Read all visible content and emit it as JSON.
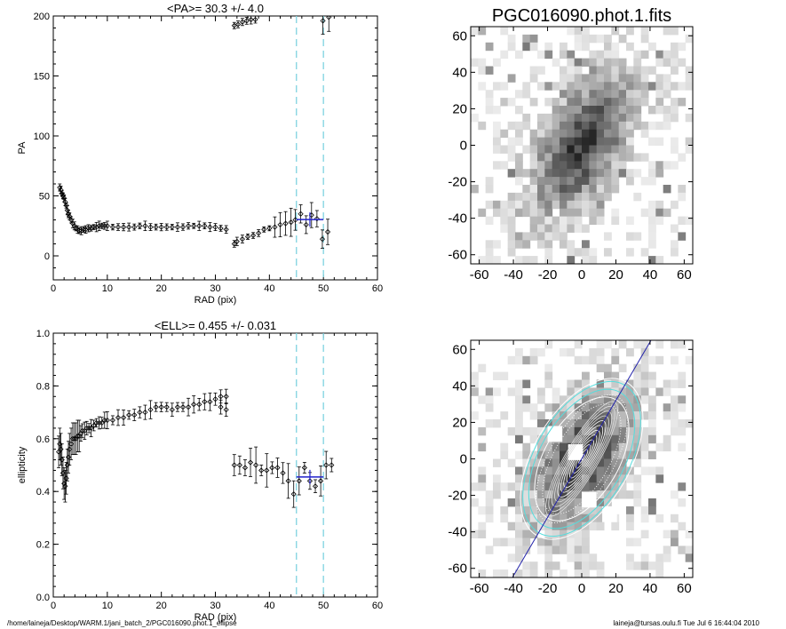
{
  "colors": {
    "axis": "#000000",
    "data_points": "#000000",
    "average_marker": "#2222cc",
    "reference_lines": "#7fd3e0",
    "image_ellipse_cyan": "#55dddd",
    "image_ellipse_white": "#ffffff",
    "major_axis_line": "#2222aa"
  },
  "footer": {
    "left": "/home/laineja/Desktop/WARM.1/jani_batch_2/PGC016090.phot.1_ellipse",
    "right": "laineja@tursas.oulu.fi  Tue Jul  6 16:44:04 2010"
  },
  "chart_data": [
    {
      "id": "pa",
      "type": "scatter",
      "title": "<PA>=  30.3 +/-   4.0",
      "xlabel": "RAD (pix)",
      "ylabel": "PA",
      "xlim": [
        0,
        60
      ],
      "ylim": [
        -20,
        200
      ],
      "xticks": [
        0,
        10,
        20,
        30,
        40,
        50,
        60
      ],
      "yticks": [
        0,
        50,
        100,
        150,
        200
      ],
      "reference_lines_x": [
        45,
        50
      ],
      "series": [
        {
          "x": [
            1.2,
            1.4,
            1.6,
            1.8,
            2.0,
            2.2,
            2.4,
            2.6,
            2.8,
            3.0,
            3.3,
            3.6,
            3.9,
            4.2,
            4.5,
            4.8,
            5.2,
            5.6,
            6.0,
            6.5,
            7.0,
            7.5,
            8,
            8.5,
            9,
            9.5,
            10,
            11,
            12,
            13,
            14,
            15,
            16,
            17,
            18,
            19,
            20,
            21,
            22,
            23,
            24,
            25,
            26,
            27,
            28,
            29,
            30,
            31,
            32,
            33.5,
            34,
            35,
            36,
            37,
            38,
            39,
            40,
            41,
            42,
            43,
            44
          ],
          "y": [
            57,
            55,
            52,
            50,
            48,
            45,
            42,
            38,
            35,
            33,
            30,
            27,
            25,
            23,
            22,
            21,
            21,
            22,
            22,
            23,
            23,
            24,
            24,
            25,
            25,
            25,
            25,
            24,
            24,
            24,
            24,
            24,
            25,
            25,
            24,
            24,
            24,
            24,
            24,
            24,
            24,
            25,
            25,
            25,
            25,
            24,
            24,
            23,
            22,
            10,
            12,
            14,
            16,
            17,
            19,
            22,
            23,
            24,
            26,
            27,
            28
          ]
        },
        {
          "x": [
            33.5,
            34.2,
            35.0,
            35.8,
            36.6,
            37.4
          ],
          "y": [
            192,
            193,
            195,
            196,
            197,
            197
          ]
        },
        {
          "x": [
            44.8,
            45.8,
            46.8,
            47.8,
            48.8,
            49.8,
            50.8
          ],
          "y": [
            30,
            35,
            26,
            34,
            31,
            14,
            20
          ]
        },
        {
          "x": [
            49.9,
            51.0
          ],
          "y": [
            196,
            199
          ]
        }
      ],
      "mean_marker": {
        "x": [
          45,
          50
        ],
        "y": 30.3
      }
    },
    {
      "id": "ell",
      "type": "scatter",
      "title": "<ELL>= 0.455 +/-  0.031",
      "xlabel": "RAD (pix)",
      "ylabel": "ellipticity",
      "xlim": [
        0,
        60
      ],
      "ylim": [
        0,
        1
      ],
      "xticks": [
        0,
        10,
        20,
        30,
        40,
        50,
        60
      ],
      "yticks": [
        0.0,
        0.2,
        0.4,
        0.6,
        0.8,
        1.0
      ],
      "reference_lines_x": [
        45,
        50
      ],
      "series": [
        {
          "x": [
            1.0,
            1.2,
            1.4,
            1.6,
            1.8,
            2.0,
            2.2,
            2.4,
            2.6,
            2.8,
            3.0,
            3.3,
            3.6,
            3.9,
            4.2,
            4.5,
            4.8,
            5.1,
            5.4,
            5.8,
            6.2,
            6.6,
            7,
            7.5,
            8,
            8.5,
            9,
            9.5,
            10,
            11,
            12,
            13,
            14,
            15,
            16,
            17,
            18,
            19,
            20,
            21,
            22,
            23,
            24,
            25,
            26,
            27,
            28,
            29,
            30,
            31,
            32
          ],
          "y": [
            0.55,
            0.58,
            0.56,
            0.52,
            0.47,
            0.43,
            0.42,
            0.45,
            0.5,
            0.53,
            0.56,
            0.58,
            0.6,
            0.6,
            0.6,
            0.61,
            0.61,
            0.62,
            0.63,
            0.63,
            0.64,
            0.64,
            0.64,
            0.65,
            0.66,
            0.66,
            0.66,
            0.67,
            0.67,
            0.67,
            0.68,
            0.68,
            0.69,
            0.69,
            0.7,
            0.7,
            0.71,
            0.72,
            0.72,
            0.72,
            0.71,
            0.72,
            0.72,
            0.72,
            0.73,
            0.73,
            0.74,
            0.74,
            0.75,
            0.76,
            0.76
          ]
        },
        {
          "x": [
            31.0,
            32.0
          ],
          "y": [
            0.72,
            0.71
          ]
        },
        {
          "x": [
            33.5,
            34.5,
            35.5,
            36.5,
            37.5,
            38.5,
            39.5,
            40.5,
            41.5,
            42.5,
            43.5,
            44.5,
            45.5,
            46.5,
            47.5,
            48.5,
            49.5,
            50.5,
            51.5
          ],
          "y": [
            0.5,
            0.5,
            0.49,
            0.51,
            0.5,
            0.48,
            0.48,
            0.49,
            0.49,
            0.47,
            0.44,
            0.39,
            0.44,
            0.49,
            0.44,
            0.42,
            0.44,
            0.5,
            0.5
          ]
        }
      ],
      "mean_marker": {
        "x": [
          45,
          50
        ],
        "y": 0.455
      }
    },
    {
      "id": "img1",
      "type": "heatmap",
      "title": "PGC016090.phot.1.fits",
      "xlim": [
        -65,
        65
      ],
      "ylim": [
        -65,
        65
      ],
      "xticks": [
        -60,
        -40,
        -20,
        0,
        20,
        40,
        60
      ],
      "yticks": [
        -60,
        -40,
        -20,
        0,
        20,
        40,
        60
      ]
    },
    {
      "id": "img2",
      "type": "heatmap",
      "title": "",
      "xlim": [
        -65,
        65
      ],
      "ylim": [
        -65,
        65
      ],
      "xticks": [
        -60,
        -40,
        -20,
        0,
        20,
        40,
        60
      ],
      "yticks": [
        -60,
        -40,
        -20,
        0,
        20,
        40,
        60
      ],
      "galaxy": {
        "pa_deg": 30.3,
        "ellipticity": 0.455,
        "center": [
          0,
          0
        ]
      },
      "outer_ellipses": [
        {
          "semi_major": 45,
          "color": "cyan"
        },
        {
          "semi_major": 50,
          "color": "cyan"
        },
        {
          "semi_major": 52,
          "color": "white"
        },
        {
          "semi_major": 40,
          "color": "white"
        }
      ]
    }
  ]
}
